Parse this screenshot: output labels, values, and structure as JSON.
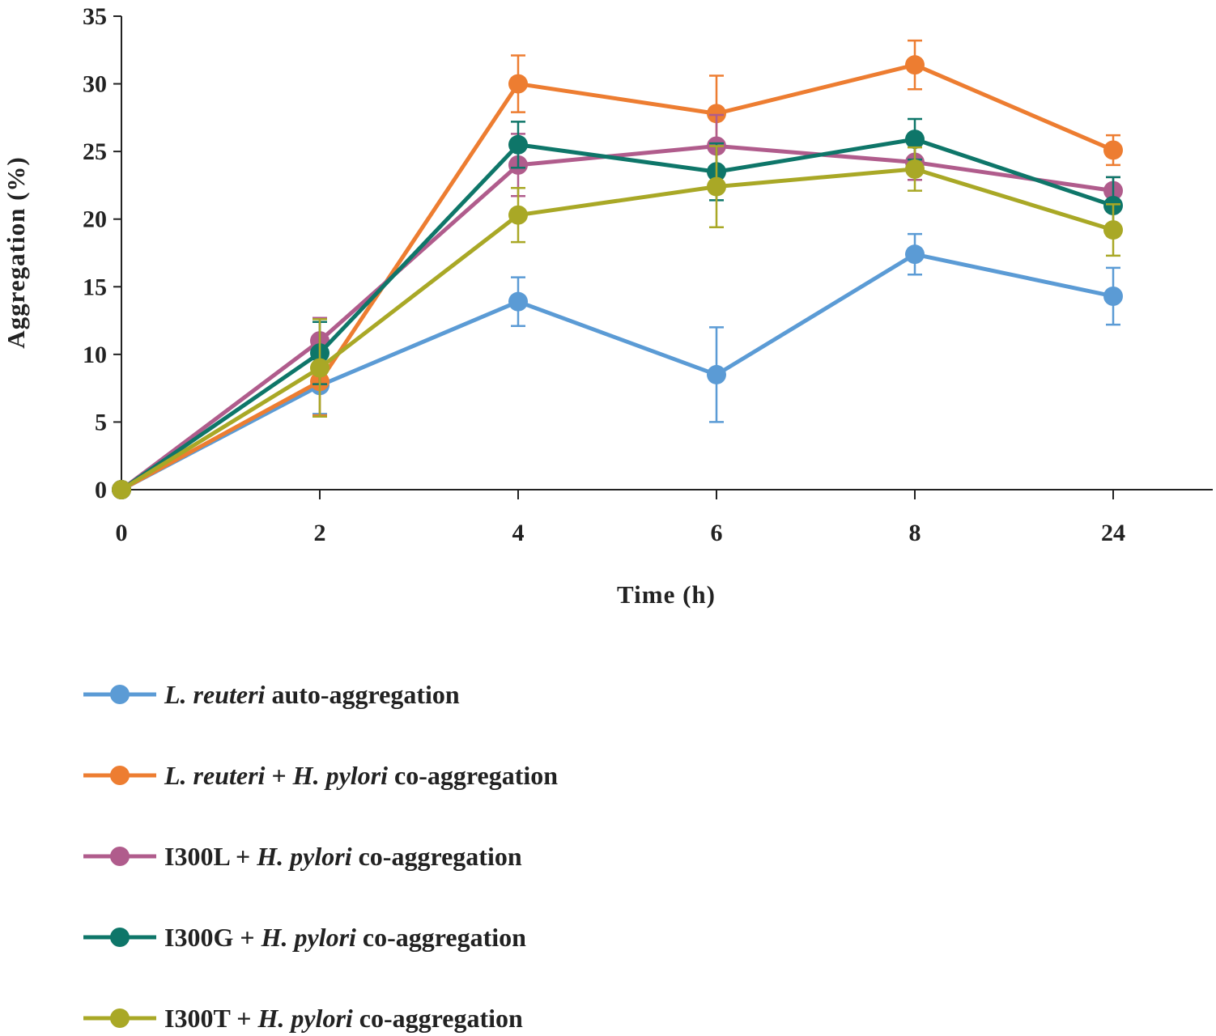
{
  "chart_data": {
    "type": "line",
    "title": "",
    "xlabel": "Time (h)",
    "ylabel": "Aggregation (%)",
    "categories": [
      "0",
      "2",
      "4",
      "6",
      "8",
      "24"
    ],
    "ylim": [
      0,
      35
    ],
    "yticks": [
      0,
      5,
      10,
      15,
      20,
      25,
      30,
      35
    ],
    "grid": false,
    "legend_position": "bottom",
    "series": [
      {
        "name": "L. reuteri auto-aggregation",
        "name_parts": [
          {
            "text": "L. reuteri",
            "italic": true
          },
          {
            "text": " auto-aggregation",
            "italic": false
          }
        ],
        "color": "#5b9bd5",
        "values": [
          0,
          7.7,
          13.9,
          8.5,
          17.4,
          14.3
        ],
        "errors": [
          0,
          2.1,
          1.8,
          3.5,
          1.5,
          2.1
        ]
      },
      {
        "name": "L. reuteri + H. pylori co-aggregation",
        "name_parts": [
          {
            "text": "L. reuteri",
            "italic": true
          },
          {
            "text": " + ",
            "italic": false
          },
          {
            "text": "H. pylori",
            "italic": true
          },
          {
            "text": " co-aggregation",
            "italic": false
          }
        ],
        "color": "#ed7d31",
        "values": [
          0,
          8.0,
          30.0,
          27.8,
          31.4,
          25.1
        ],
        "errors": [
          0,
          2.5,
          2.1,
          2.8,
          1.8,
          1.1
        ]
      },
      {
        "name": "I300L + H. pylori co-aggregation",
        "name_parts": [
          {
            "text": "I300L + ",
            "italic": false
          },
          {
            "text": "H. pylori",
            "italic": true
          },
          {
            "text": " co-aggregation",
            "italic": false
          }
        ],
        "color": "#b05c8c",
        "values": [
          0,
          11.0,
          24.0,
          25.4,
          24.2,
          22.1
        ],
        "errors": [
          0,
          1.7,
          2.3,
          2.3,
          1.3,
          1.0
        ]
      },
      {
        "name": "I300G + H. pylori co-aggregation",
        "name_parts": [
          {
            "text": "I300G + ",
            "italic": false
          },
          {
            "text": "H. pylori",
            "italic": true
          },
          {
            "text": " co-aggregation",
            "italic": false
          }
        ],
        "color": "#0e7669",
        "values": [
          0,
          10.1,
          25.5,
          23.5,
          25.9,
          21.0
        ],
        "errors": [
          0,
          2.3,
          1.7,
          2.1,
          1.5,
          2.1
        ]
      },
      {
        "name": "I300T + H. pylori co-aggregation",
        "name_parts": [
          {
            "text": "I300T + ",
            "italic": false
          },
          {
            "text": "H. pylori",
            "italic": true
          },
          {
            "text": " co-aggregation",
            "italic": false
          }
        ],
        "color": "#a9a826",
        "values": [
          0,
          9.0,
          20.3,
          22.4,
          23.7,
          19.2
        ],
        "errors": [
          0,
          3.6,
          2.0,
          3.0,
          1.6,
          1.9
        ]
      }
    ]
  }
}
